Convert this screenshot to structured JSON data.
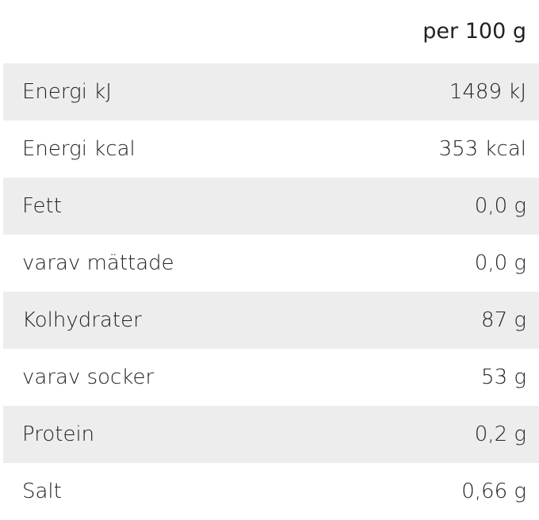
{
  "table": {
    "header": "per 100 g",
    "rows": [
      [
        "Energi kJ",
        "1489 kJ"
      ],
      [
        "Energi kcal",
        "353 kcal"
      ],
      [
        "Fett",
        "0,0 g"
      ],
      [
        "varav mättade",
        "0,0 g"
      ],
      [
        "Kolhydrater",
        "87 g"
      ],
      [
        "varav socker",
        "53 g"
      ],
      [
        "Protein",
        "0,2 g"
      ],
      [
        "Salt",
        "0,66 g"
      ]
    ]
  }
}
